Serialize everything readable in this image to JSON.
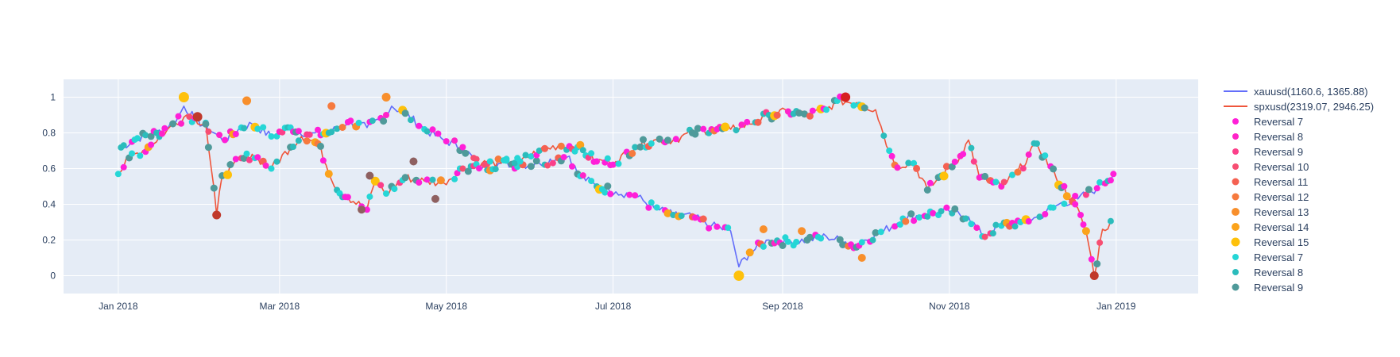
{
  "chart_data": {
    "type": "line",
    "title": "",
    "xlabel": "",
    "ylabel": "",
    "xlim": [
      "2017-12-12",
      "2019-01-31"
    ],
    "ylim": [
      -0.1,
      1.1
    ],
    "grid": true,
    "legend_placement": "right",
    "colors": {
      "plot_bg": "#e5ecf6",
      "grid": "#ffffff",
      "xauusd": "#636efa",
      "spxusd": "#ef553b"
    },
    "x_ticks": [
      {
        "date": "2018-01-01",
        "label": "Jan 2018"
      },
      {
        "date": "2018-03-01",
        "label": "Mar 2018"
      },
      {
        "date": "2018-05-01",
        "label": "May 2018"
      },
      {
        "date": "2018-07-01",
        "label": "Jul 2018"
      },
      {
        "date": "2018-09-01",
        "label": "Sep 2018"
      },
      {
        "date": "2018-11-01",
        "label": "Nov 2018"
      },
      {
        "date": "2019-01-01",
        "label": "Jan 2019"
      }
    ],
    "y_ticks": [
      {
        "value": 0,
        "label": "0"
      },
      {
        "value": 0.2,
        "label": "0.2"
      },
      {
        "value": 0.4,
        "label": "0.4"
      },
      {
        "value": 0.6,
        "label": "0.6"
      },
      {
        "value": 0.8,
        "label": "0.8"
      },
      {
        "value": 1,
        "label": "1"
      }
    ],
    "series": [
      {
        "name": "xauusd(1160.6, 1365.88)",
        "color": "#636efa",
        "x": [
          "2018-01-01",
          "2018-01-08",
          "2018-01-15",
          "2018-01-22",
          "2018-01-25",
          "2018-01-29",
          "2018-02-05",
          "2018-02-09",
          "2018-02-15",
          "2018-02-19",
          "2018-02-26",
          "2018-03-05",
          "2018-03-12",
          "2018-03-19",
          "2018-03-26",
          "2018-04-02",
          "2018-04-09",
          "2018-04-11",
          "2018-04-16",
          "2018-04-23",
          "2018-04-30",
          "2018-05-07",
          "2018-05-14",
          "2018-05-21",
          "2018-05-28",
          "2018-06-04",
          "2018-06-11",
          "2018-06-15",
          "2018-06-18",
          "2018-06-25",
          "2018-07-02",
          "2018-07-09",
          "2018-07-16",
          "2018-07-23",
          "2018-07-30",
          "2018-08-06",
          "2018-08-13",
          "2018-08-16",
          "2018-08-20",
          "2018-08-27",
          "2018-09-03",
          "2018-09-10",
          "2018-09-17",
          "2018-09-24",
          "2018-09-28",
          "2018-10-01",
          "2018-10-08",
          "2018-10-15",
          "2018-10-22",
          "2018-10-26",
          "2018-11-01",
          "2018-11-08",
          "2018-11-13",
          "2018-11-20",
          "2018-11-27",
          "2018-12-04",
          "2018-12-11",
          "2018-12-18",
          "2018-12-25",
          "2018-12-31"
        ],
        "values": [
          0.71,
          0.77,
          0.8,
          0.86,
          0.95,
          0.88,
          0.8,
          0.76,
          0.83,
          0.85,
          0.78,
          0.83,
          0.79,
          0.8,
          0.86,
          0.83,
          0.9,
          0.95,
          0.91,
          0.82,
          0.76,
          0.72,
          0.6,
          0.63,
          0.62,
          0.63,
          0.66,
          0.67,
          0.57,
          0.5,
          0.47,
          0.45,
          0.38,
          0.34,
          0.33,
          0.28,
          0.25,
          0.05,
          0.13,
          0.2,
          0.19,
          0.2,
          0.22,
          0.19,
          0.16,
          0.2,
          0.25,
          0.32,
          0.34,
          0.35,
          0.36,
          0.33,
          0.22,
          0.28,
          0.3,
          0.33,
          0.4,
          0.43,
          0.49,
          0.57
        ]
      },
      {
        "name": "spxusd(2319.07, 2946.25)",
        "color": "#ef553b",
        "x": [
          "2018-01-01",
          "2018-01-05",
          "2018-01-12",
          "2018-01-19",
          "2018-01-26",
          "2018-02-02",
          "2018-02-06",
          "2018-02-08",
          "2018-02-12",
          "2018-02-19",
          "2018-02-26",
          "2018-03-05",
          "2018-03-09",
          "2018-03-15",
          "2018-03-22",
          "2018-03-26",
          "2018-04-02",
          "2018-04-05",
          "2018-04-09",
          "2018-04-16",
          "2018-04-23",
          "2018-04-30",
          "2018-05-07",
          "2018-05-14",
          "2018-05-21",
          "2018-05-28",
          "2018-06-04",
          "2018-06-11",
          "2018-06-18",
          "2018-06-25",
          "2018-07-02",
          "2018-07-09",
          "2018-07-16",
          "2018-07-23",
          "2018-07-30",
          "2018-08-06",
          "2018-08-13",
          "2018-08-20",
          "2018-08-27",
          "2018-09-03",
          "2018-09-10",
          "2018-09-17",
          "2018-09-21",
          "2018-09-28",
          "2018-10-05",
          "2018-10-10",
          "2018-10-12",
          "2018-10-19",
          "2018-10-24",
          "2018-10-29",
          "2018-11-05",
          "2018-11-08",
          "2018-11-12",
          "2018-11-20",
          "2018-11-26",
          "2018-12-03",
          "2018-12-10",
          "2018-12-17",
          "2018-12-21",
          "2018-12-24",
          "2018-12-27",
          "2018-12-31"
        ],
        "values": [
          0.57,
          0.66,
          0.72,
          0.82,
          0.9,
          0.85,
          0.34,
          0.56,
          0.62,
          0.68,
          0.6,
          0.72,
          0.78,
          0.74,
          0.48,
          0.44,
          0.37,
          0.53,
          0.46,
          0.55,
          0.53,
          0.52,
          0.6,
          0.63,
          0.63,
          0.64,
          0.7,
          0.73,
          0.72,
          0.64,
          0.64,
          0.72,
          0.76,
          0.76,
          0.8,
          0.82,
          0.82,
          0.85,
          0.9,
          0.92,
          0.9,
          0.93,
          0.98,
          0.97,
          0.93,
          0.7,
          0.62,
          0.63,
          0.48,
          0.56,
          0.67,
          0.76,
          0.55,
          0.5,
          0.58,
          0.74,
          0.55,
          0.4,
          0.25,
          0.0,
          0.26,
          0.3
        ]
      }
    ],
    "reversal_legend": [
      {
        "name": "Reversal 7",
        "color": "#ff1fd8",
        "size": 6
      },
      {
        "name": "Reversal 8",
        "color": "#ff23c8",
        "size": 6
      },
      {
        "name": "Reversal 9",
        "color": "#fc3f8a",
        "size": 6
      },
      {
        "name": "Reversal 10",
        "color": "#f74e72",
        "size": 6
      },
      {
        "name": "Reversal 11",
        "color": "#f56152",
        "size": 7
      },
      {
        "name": "Reversal 12",
        "color": "#f67a3e",
        "size": 7
      },
      {
        "name": "Reversal 13",
        "color": "#f88f2c",
        "size": 8
      },
      {
        "name": "Reversal 14",
        "color": "#fba31b",
        "size": 8
      },
      {
        "name": "Reversal 15",
        "color": "#fec10b",
        "size": 9
      },
      {
        "name": "Reversal 7",
        "color": "#25d6d6",
        "size": 6
      },
      {
        "name": "Reversal 8",
        "color": "#2bbcbc",
        "size": 6
      },
      {
        "name": "Reversal 9",
        "color": "#4f9a9a",
        "size": 7
      }
    ],
    "highlight_markers": [
      {
        "date": "2018-01-25",
        "value": 1.0,
        "color": "#fec10b",
        "size": 9
      },
      {
        "date": "2018-01-30",
        "value": 0.89,
        "color": "#c0392b",
        "size": 8
      },
      {
        "date": "2018-02-06",
        "value": 0.34,
        "color": "#c0392b",
        "size": 7
      },
      {
        "date": "2018-02-17",
        "value": 0.98,
        "color": "#f88f2c",
        "size": 7
      },
      {
        "date": "2018-04-09",
        "value": 1.0,
        "color": "#f88f2c",
        "size": 7
      },
      {
        "date": "2018-08-16",
        "value": 0.0,
        "color": "#fec10b",
        "size": 9
      },
      {
        "date": "2018-09-24",
        "value": 1.0,
        "color": "#d62020",
        "size": 8
      },
      {
        "date": "2018-12-24",
        "value": 0.0,
        "color": "#c0392b",
        "size": 7
      },
      {
        "date": "2018-03-20",
        "value": 0.95,
        "color": "#f67a3e",
        "size": 6
      },
      {
        "date": "2018-08-25",
        "value": 0.26,
        "color": "#f88f2c",
        "size": 6
      },
      {
        "date": "2018-09-08",
        "value": 0.25,
        "color": "#f88f2c",
        "size": 6
      },
      {
        "date": "2018-09-30",
        "value": 0.1,
        "color": "#f88f2c",
        "size": 6
      },
      {
        "date": "2018-04-03",
        "value": 0.56,
        "color": "#8e6060",
        "size": 6
      },
      {
        "date": "2018-03-31",
        "value": 0.37,
        "color": "#8e6060",
        "size": 6
      },
      {
        "date": "2018-04-19",
        "value": 0.64,
        "color": "#8e6060",
        "size": 6
      },
      {
        "date": "2018-04-27",
        "value": 0.43,
        "color": "#8e6060",
        "size": 6
      }
    ]
  }
}
